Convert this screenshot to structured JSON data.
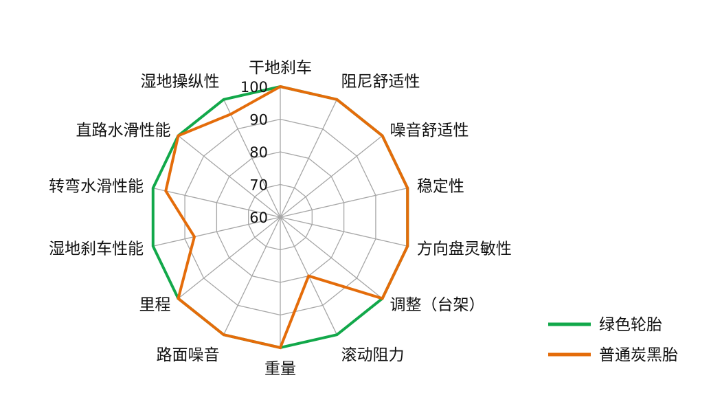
{
  "chart_data": {
    "type": "radar",
    "categories": [
      "干地刹车",
      "阻尼舒适性",
      "噪音舒适性",
      "稳定性",
      "方向盘灵敏性",
      "调整（台架）",
      "滚动阻力",
      "重量",
      "路面噪音",
      "里程",
      "湿地刹车性能",
      "转弯水滑性能",
      "直路水滑性能",
      "湿地操纵性"
    ],
    "rlim": [
      60,
      100
    ],
    "ticks": [
      "60",
      "70",
      "80",
      "90",
      "100"
    ],
    "tick_values": [
      60,
      70,
      80,
      90,
      100
    ],
    "grid": true,
    "legend_position": "right-bottom",
    "series": [
      {
        "name": "绿色轮胎",
        "color": "#12a84a",
        "values": [
          100,
          100,
          100,
          100,
          100,
          100,
          100,
          100,
          100,
          100,
          100,
          100,
          100,
          100
        ]
      },
      {
        "name": "普通炭黑胎",
        "color": "#e46c0a",
        "values": [
          100,
          100,
          100,
          100,
          100,
          100,
          80,
          100,
          100,
          100,
          87,
          96,
          100,
          95
        ]
      }
    ]
  }
}
